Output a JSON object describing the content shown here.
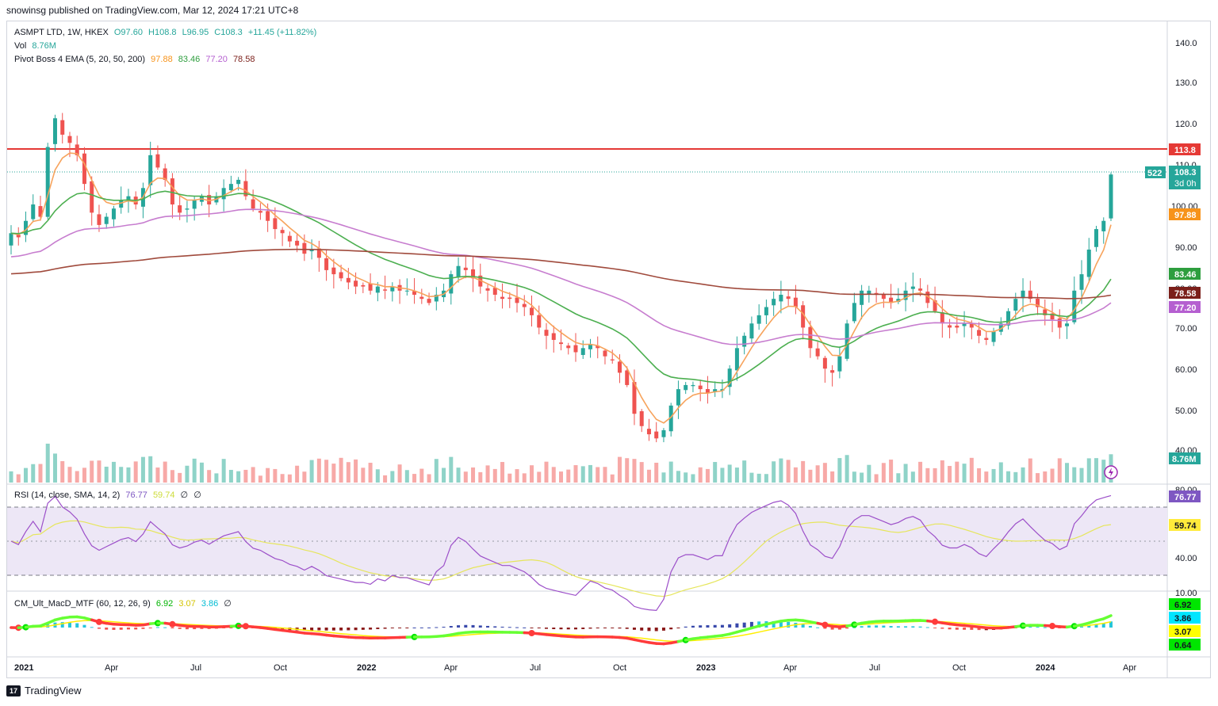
{
  "header": {
    "published": "snowinsg published on TradingView.com, Mar 12, 2024 17:21 UTC+8"
  },
  "legend": {
    "symbol": "ASMPT LTD, 1W, HKEX",
    "open": "O97.60",
    "high": "H108.8",
    "low": "L96.95",
    "close": "C108.3",
    "change": "+11.45 (+11.82%)",
    "vol_label": "Vol",
    "vol_value": "8.76M",
    "ema_label": "Pivot Boss 4 EMA (5, 20, 50, 200)",
    "ema5": "97.88",
    "ema20": "83.46",
    "ema50": "77.20",
    "ema200": "78.58",
    "rsi_label": "RSI (14, close, SMA, 14, 2)",
    "rsi_value": "76.77",
    "rsi_sma": "59.74",
    "rsi_z1": "∅",
    "rsi_z2": "∅",
    "macd_label": "CM_Ult_MacD_MTF (60, 12, 26, 9)",
    "macd_v1": "6.92",
    "macd_v2": "3.07",
    "macd_v3": "3.86",
    "macd_z": "∅"
  },
  "price_axis": {
    "ticks": [
      "140.0",
      "130.0",
      "120.0",
      "110.0",
      "100.00",
      "90.00",
      "80.00",
      "70.00",
      "60.00",
      "50.00",
      "40.00"
    ],
    "badges": {
      "resistance": "113.8",
      "countdown_left": "522",
      "last_price": "108.3",
      "countdown": "3d 0h",
      "ema5": "97.88",
      "ema20": "83.46",
      "ema200": "78.58",
      "ema50": "77.20",
      "volume": "8.76M"
    }
  },
  "rsi_axis": {
    "ticks": [
      "80.00",
      "40.00",
      "10.00"
    ],
    "badges": {
      "rsi": "76.77",
      "sma": "59.74"
    }
  },
  "macd_axis": {
    "badges": [
      "6.92",
      "3.86",
      "3.07",
      "0.64"
    ]
  },
  "time_axis": {
    "labels": [
      "2021",
      "Apr",
      "Jul",
      "Oct",
      "2022",
      "Apr",
      "Jul",
      "Oct",
      "2023",
      "Apr",
      "Jul",
      "Oct",
      "2024",
      "Apr"
    ]
  },
  "footer": {
    "brand": "TradingView"
  },
  "colors": {
    "up": "#26a69a",
    "down": "#ef5350",
    "ema5": "#f7a35c",
    "ema20": "#4caf50",
    "ema50": "#c77dcf",
    "ema200": "#a04a3c",
    "resistance": "#e53935",
    "rsi": "#9c4fc9",
    "rsi_band": "#ede7f6"
  },
  "chart_data": {
    "type": "candlestick",
    "title": "ASMPT LTD, 1W, HKEX",
    "x_range": [
      "2021-01",
      "2024-03"
    ],
    "ylim": [
      40,
      140
    ],
    "resistance_level": 113.8,
    "last": {
      "open": 97.6,
      "high": 108.8,
      "low": 96.95,
      "close": 108.3
    },
    "approx_weekly_closes": [
      94,
      93,
      97,
      101,
      98,
      115,
      122,
      118,
      116,
      113,
      106,
      99,
      96,
      98,
      100,
      102,
      103,
      101,
      105,
      113,
      110,
      107,
      101,
      99,
      100,
      102,
      103,
      101,
      103,
      105,
      106,
      107,
      103,
      100,
      99,
      97,
      95,
      94,
      92,
      91,
      89,
      90,
      88,
      85,
      84,
      83,
      82,
      81,
      81,
      80,
      81,
      80,
      81,
      80,
      80,
      79,
      78,
      77,
      79,
      80,
      84,
      86,
      85,
      83,
      81,
      80,
      79,
      78,
      78,
      77,
      76,
      74,
      71,
      69,
      68,
      67,
      66,
      65,
      66,
      67,
      66,
      64,
      63,
      60,
      57,
      50,
      47,
      45,
      44,
      46,
      52,
      56,
      57,
      57,
      56,
      55,
      56,
      56,
      61,
      66,
      69,
      72,
      74,
      76,
      78,
      79,
      78,
      76,
      71,
      66,
      64,
      61,
      60,
      64,
      72,
      77,
      80,
      80,
      79,
      78,
      77,
      78,
      80,
      81,
      80,
      77,
      75,
      72,
      71,
      71,
      72,
      71,
      69,
      68,
      70,
      72,
      75,
      78,
      80,
      78,
      76,
      74,
      73,
      71,
      72,
      80,
      84,
      90,
      95,
      97,
      108.3
    ],
    "ema_series": [
      {
        "name": "EMA 5",
        "last": 97.88
      },
      {
        "name": "EMA 20",
        "last": 83.46
      },
      {
        "name": "EMA 50",
        "last": 77.2
      },
      {
        "name": "EMA 200",
        "last": 78.58
      }
    ],
    "volume_last": "8.76M",
    "rsi": {
      "last": 76.77,
      "sma": 59.74,
      "upper": 70,
      "lower": 30
    },
    "macd": {
      "macd": 6.92,
      "signal": 3.07,
      "hist": 3.86
    }
  }
}
